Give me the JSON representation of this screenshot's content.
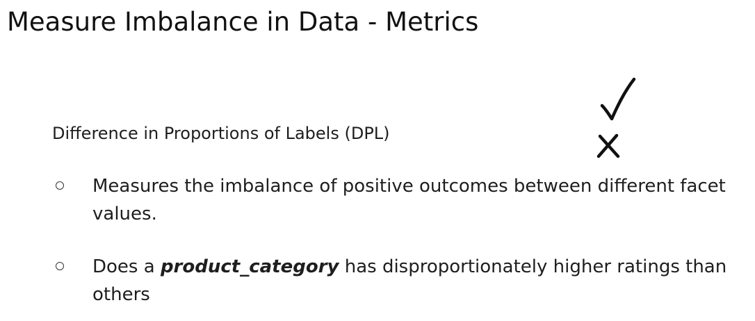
{
  "slide": {
    "title": "Measure Imbalance in Data - Metrics",
    "subheading": "Difference in Proportions of Labels (DPL)",
    "bullets": [
      {
        "text": "Measures the imbalance of positive outcomes between different facet values."
      },
      {
        "prefix": "Does a ",
        "emphasis": "product_category",
        "suffix": " has disproportionately higher ratings than others"
      }
    ],
    "annotations": {
      "check_icon": "check-icon",
      "cross_icon": "cross-icon"
    }
  }
}
